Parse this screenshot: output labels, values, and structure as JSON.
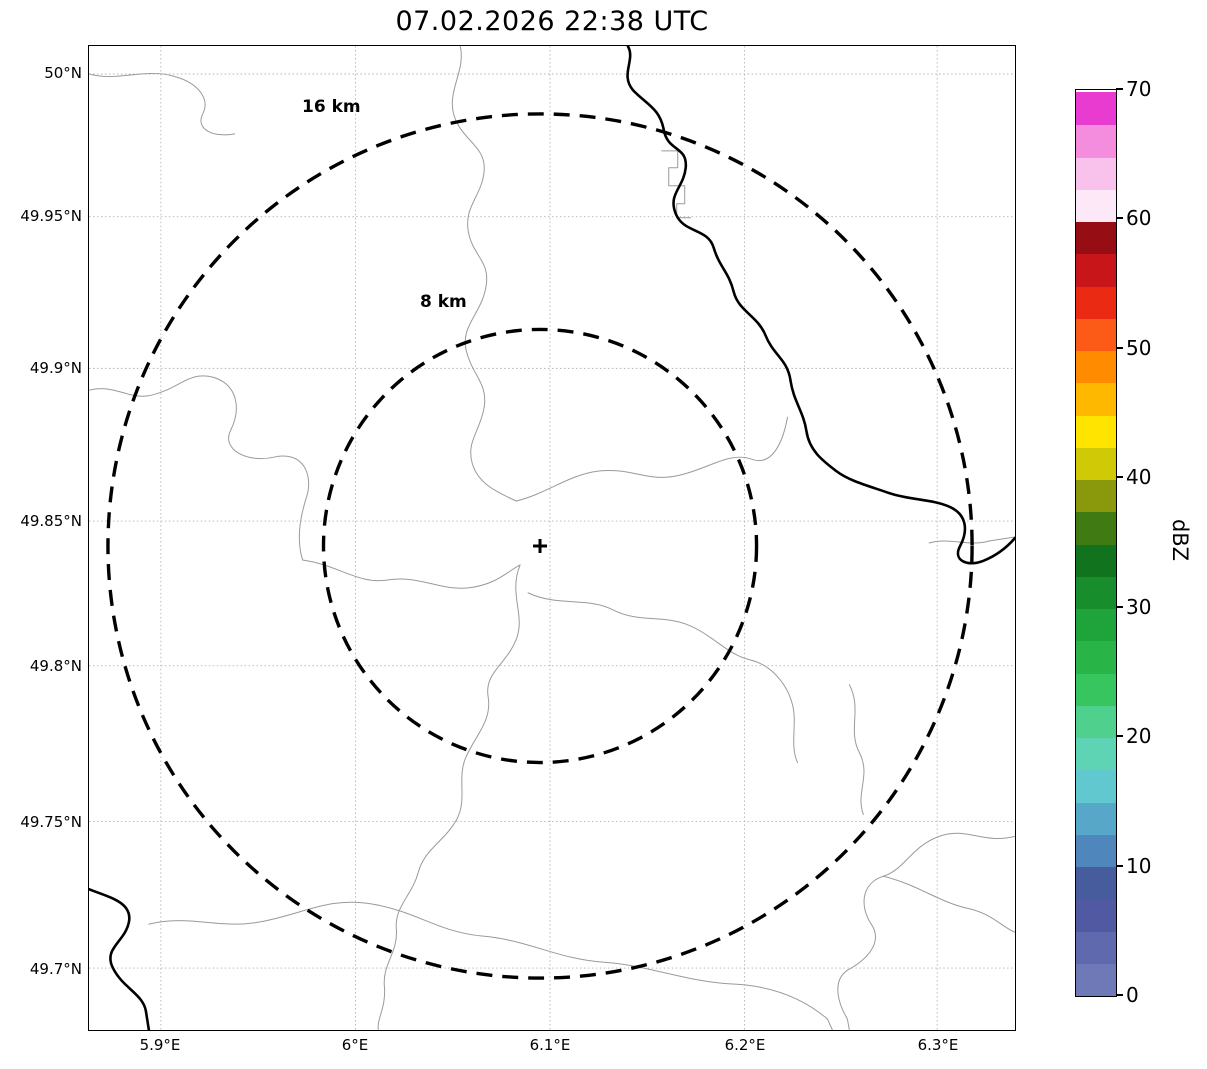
{
  "title": "07.02.2026 22:38 UTC",
  "map": {
    "x_axis_ticks": [
      "5.9°E",
      "6°E",
      "6.1°E",
      "6.2°E",
      "6.3°E"
    ],
    "y_axis_ticks": [
      "50°N",
      "49.95°N",
      "49.9°N",
      "49.85°N",
      "49.8°N",
      "49.75°N",
      "49.7°N"
    ],
    "range_rings": [
      {
        "label": "16 km",
        "radius_km": 16
      },
      {
        "label": "8 km",
        "radius_km": 8
      }
    ],
    "radar_site_marker": "+",
    "precipitation_echoes": "none visible"
  },
  "colorbar": {
    "label": "dBZ",
    "ticks": [
      "0",
      "10",
      "20",
      "30",
      "40",
      "50",
      "60",
      "70"
    ],
    "min": 0,
    "max": 70,
    "segment_step_dbz": 2.5,
    "segment_colors_bottom_to_top": [
      "#6f79b8",
      "#5f6aae",
      "#5059a2",
      "#475c9c",
      "#4f86bb",
      "#57a8c8",
      "#62c8cf",
      "#5fd4b5",
      "#4fd08d",
      "#37c55f",
      "#29b447",
      "#1ea43a",
      "#178e2b",
      "#11731d",
      "#3f7a12",
      "#8a990c",
      "#cfc906",
      "#ffe400",
      "#ffb800",
      "#ff8c00",
      "#fc5a17",
      "#ea2a13",
      "#c81519",
      "#960e14",
      "#fce8f7",
      "#f9c2ec",
      "#f48ddd",
      "#e93bcf"
    ]
  }
}
